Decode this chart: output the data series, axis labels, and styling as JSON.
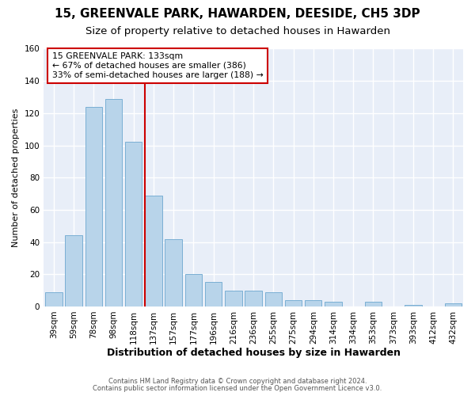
{
  "title": "15, GREENVALE PARK, HAWARDEN, DEESIDE, CH5 3DP",
  "subtitle": "Size of property relative to detached houses in Hawarden",
  "xlabel": "Distribution of detached houses by size in Hawarden",
  "ylabel": "Number of detached properties",
  "bar_labels": [
    "39sqm",
    "59sqm",
    "78sqm",
    "98sqm",
    "118sqm",
    "137sqm",
    "157sqm",
    "177sqm",
    "196sqm",
    "216sqm",
    "236sqm",
    "255sqm",
    "275sqm",
    "294sqm",
    "314sqm",
    "334sqm",
    "353sqm",
    "373sqm",
    "393sqm",
    "412sqm",
    "432sqm"
  ],
  "bar_values": [
    9,
    44,
    124,
    129,
    102,
    69,
    42,
    20,
    15,
    10,
    10,
    9,
    4,
    4,
    3,
    0,
    3,
    0,
    1,
    0,
    2
  ],
  "bar_color": "#b8d4ea",
  "bar_edge_color": "#7aafd4",
  "property_line_label": "15 GREENVALE PARK: 133sqm",
  "annotation_line1": "← 67% of detached houses are smaller (386)",
  "annotation_line2": "33% of semi-detached houses are larger (188) →",
  "annotation_box_color": "#ffffff",
  "annotation_box_edge": "#cc0000",
  "property_line_color": "#cc0000",
  "ylim": [
    0,
    160
  ],
  "yticks": [
    0,
    20,
    40,
    60,
    80,
    100,
    120,
    140,
    160
  ],
  "footnote1": "Contains HM Land Registry data © Crown copyright and database right 2024.",
  "footnote2": "Contains public sector information licensed under the Open Government Licence v3.0.",
  "fig_background_color": "#ffffff",
  "plot_background": "#e8eef8",
  "grid_color": "#ffffff",
  "title_fontsize": 11,
  "subtitle_fontsize": 9.5,
  "xlabel_fontsize": 9,
  "ylabel_fontsize": 8,
  "tick_fontsize": 7.5,
  "footnote_fontsize": 6,
  "annotation_fontsize": 7.8,
  "line_x_index": 4.58
}
